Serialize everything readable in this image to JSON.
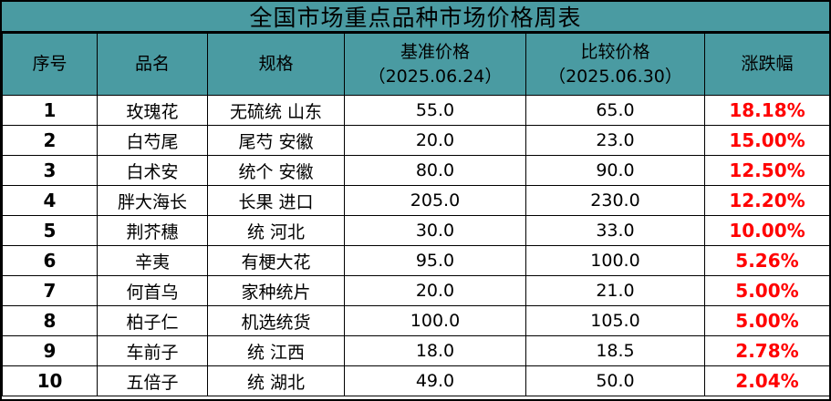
{
  "title": "全国市场重点品种市场价格周表",
  "colors": {
    "header_bg": "#4a9ba2",
    "change_text": "#ff0000",
    "border": "#000000"
  },
  "headers": {
    "no": "序号",
    "name": "品名",
    "spec": "规格",
    "base_price": "基准价格",
    "base_date": "（2025.06.24）",
    "compare_price": "比较价格",
    "compare_date": "（2025.06.30）",
    "change": "涨跌幅"
  },
  "rows": [
    {
      "no": "1",
      "name": "玫瑰花",
      "spec": "无硫统 山东",
      "base": "55.0",
      "compare": "65.0",
      "change": "18.18%"
    },
    {
      "no": "2",
      "name": "白芍尾",
      "spec": "尾芍 安徽",
      "base": "20.0",
      "compare": "23.0",
      "change": "15.00%"
    },
    {
      "no": "3",
      "name": "白术安",
      "spec": "统个 安徽",
      "base": "80.0",
      "compare": "90.0",
      "change": "12.50%"
    },
    {
      "no": "4",
      "name": "胖大海长",
      "spec": "长果 进口",
      "base": "205.0",
      "compare": "230.0",
      "change": "12.20%"
    },
    {
      "no": "5",
      "name": "荆芥穗",
      "spec": "统 河北",
      "base": "30.0",
      "compare": "33.0",
      "change": "10.00%"
    },
    {
      "no": "6",
      "name": "辛夷",
      "spec": "有梗大花",
      "base": "95.0",
      "compare": "100.0",
      "change": "5.26%"
    },
    {
      "no": "7",
      "name": "何首乌",
      "spec": "家种统片",
      "base": "20.0",
      "compare": "21.0",
      "change": "5.00%"
    },
    {
      "no": "8",
      "name": "柏子仁",
      "spec": "机选统货",
      "base": "100.0",
      "compare": "105.0",
      "change": "5.00%"
    },
    {
      "no": "9",
      "name": "车前子",
      "spec": "统 江西",
      "base": "18.0",
      "compare": "18.5",
      "change": "2.78%"
    },
    {
      "no": "10",
      "name": "五倍子",
      "spec": "统 湖北",
      "base": "49.0",
      "compare": "50.0",
      "change": "2.04%"
    }
  ]
}
